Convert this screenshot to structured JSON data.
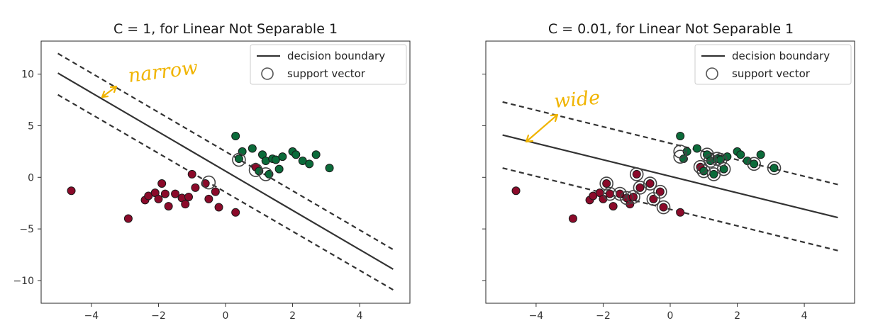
{
  "chart_data": [
    {
      "type": "scatter",
      "title": "C = 1, for Linear Not Separable 1",
      "xlabel": "",
      "ylabel": "",
      "xlim": [
        -5.5,
        5.5
      ],
      "ylim": [
        -12.2,
        13.2
      ],
      "xticks": [
        -4,
        -2,
        0,
        2,
        4
      ],
      "yticks": [
        -10,
        -5,
        0,
        5,
        10
      ],
      "xtick_labels": [
        "−4",
        "−2",
        "0",
        "2",
        "4"
      ],
      "ytick_labels": [
        "−10",
        "−5",
        "0",
        "5",
        "10"
      ],
      "legend": {
        "position": "top-right",
        "entries": [
          "decision boundary",
          "support vector"
        ]
      },
      "annotation": "narrow",
      "lines": [
        {
          "role": "decision-boundary",
          "style": "solid",
          "x": [
            -5,
            5
          ],
          "y": [
            10.1,
            -8.9
          ]
        },
        {
          "role": "margin-upper",
          "style": "dashed",
          "x": [
            -5,
            5
          ],
          "y": [
            12.0,
            -7.0
          ]
        },
        {
          "role": "margin-lower",
          "style": "dashed",
          "x": [
            -5,
            5
          ],
          "y": [
            8.0,
            -10.9
          ]
        }
      ],
      "series": [
        {
          "class": "red",
          "color": "#8b0a2a",
          "points": [
            [
              -4.6,
              -1.3
            ],
            [
              -2.9,
              -4.0
            ],
            [
              -2.4,
              -2.2
            ],
            [
              -2.3,
              -1.8
            ],
            [
              -2.1,
              -1.5
            ],
            [
              -2.0,
              -2.1
            ],
            [
              -1.9,
              -0.6
            ],
            [
              -1.8,
              -1.6
            ],
            [
              -1.7,
              -2.8
            ],
            [
              -1.5,
              -1.6
            ],
            [
              -1.3,
              -2.0
            ],
            [
              -1.2,
              -2.6
            ],
            [
              -1.1,
              -1.9
            ],
            [
              -1.0,
              0.3
            ],
            [
              -0.9,
              -1.0
            ],
            [
              -0.6,
              -0.6
            ],
            [
              -0.5,
              -2.1
            ],
            [
              -0.3,
              -1.4
            ],
            [
              -0.2,
              -2.9
            ],
            [
              0.3,
              -3.4
            ],
            [
              0.9,
              1.0
            ]
          ]
        },
        {
          "class": "green",
          "color": "#0b6b3a",
          "points": [
            [
              0.3,
              4.0
            ],
            [
              0.4,
              1.8
            ],
            [
              0.5,
              2.5
            ],
            [
              0.8,
              2.8
            ],
            [
              1.0,
              0.6
            ],
            [
              1.1,
              2.2
            ],
            [
              1.2,
              1.6
            ],
            [
              1.3,
              0.3
            ],
            [
              1.4,
              1.8
            ],
            [
              1.5,
              1.7
            ],
            [
              1.6,
              0.8
            ],
            [
              1.7,
              2.0
            ],
            [
              2.0,
              2.5
            ],
            [
              2.1,
              2.2
            ],
            [
              2.3,
              1.6
            ],
            [
              2.5,
              1.3
            ],
            [
              2.7,
              2.2
            ],
            [
              3.1,
              0.9
            ]
          ]
        }
      ],
      "support_vectors": [
        [
          -0.5,
          -0.5
        ],
        [
          0.4,
          1.7
        ],
        [
          0.9,
          0.7
        ],
        [
          1.2,
          0.3
        ]
      ]
    },
    {
      "type": "scatter",
      "title": "C = 0.01, for Linear Not Separable 1",
      "xlabel": "",
      "ylabel": "",
      "xlim": [
        -5.5,
        5.5
      ],
      "ylim": [
        -12.2,
        13.2
      ],
      "xticks": [
        -4,
        -2,
        0,
        2,
        4
      ],
      "yticks": [
        -10,
        -5,
        0,
        5,
        10
      ],
      "xtick_labels": [
        "−4",
        "−2",
        "0",
        "2",
        "4"
      ],
      "ytick_labels": [],
      "legend": {
        "position": "top-right",
        "entries": [
          "decision boundary",
          "support vector"
        ]
      },
      "annotation": "wide",
      "lines": [
        {
          "role": "decision-boundary",
          "style": "solid",
          "x": [
            -5,
            5
          ],
          "y": [
            4.1,
            -3.9
          ]
        },
        {
          "role": "margin-upper",
          "style": "dashed",
          "x": [
            -5,
            5
          ],
          "y": [
            7.3,
            -0.7
          ]
        },
        {
          "role": "margin-lower",
          "style": "dashed",
          "x": [
            -5,
            5
          ],
          "y": [
            0.9,
            -7.1
          ]
        }
      ],
      "series": [
        {
          "class": "red",
          "color": "#8b0a2a",
          "points": [
            [
              -4.6,
              -1.3
            ],
            [
              -2.9,
              -4.0
            ],
            [
              -2.4,
              -2.2
            ],
            [
              -2.3,
              -1.8
            ],
            [
              -2.1,
              -1.5
            ],
            [
              -2.0,
              -2.1
            ],
            [
              -1.9,
              -0.6
            ],
            [
              -1.8,
              -1.6
            ],
            [
              -1.7,
              -2.8
            ],
            [
              -1.5,
              -1.6
            ],
            [
              -1.3,
              -2.0
            ],
            [
              -1.2,
              -2.6
            ],
            [
              -1.1,
              -1.9
            ],
            [
              -1.0,
              0.3
            ],
            [
              -0.9,
              -1.0
            ],
            [
              -0.6,
              -0.6
            ],
            [
              -0.5,
              -2.1
            ],
            [
              -0.3,
              -1.4
            ],
            [
              -0.2,
              -2.9
            ],
            [
              0.3,
              -3.4
            ],
            [
              0.9,
              1.0
            ]
          ]
        },
        {
          "class": "green",
          "color": "#0b6b3a",
          "points": [
            [
              0.3,
              4.0
            ],
            [
              0.4,
              1.8
            ],
            [
              0.5,
              2.5
            ],
            [
              0.8,
              2.8
            ],
            [
              1.0,
              0.6
            ],
            [
              1.1,
              2.2
            ],
            [
              1.2,
              1.6
            ],
            [
              1.3,
              0.3
            ],
            [
              1.4,
              1.8
            ],
            [
              1.5,
              1.7
            ],
            [
              1.6,
              0.8
            ],
            [
              1.7,
              2.0
            ],
            [
              2.0,
              2.5
            ],
            [
              2.1,
              2.2
            ],
            [
              2.3,
              1.6
            ],
            [
              2.5,
              1.3
            ],
            [
              2.7,
              2.2
            ],
            [
              3.1,
              0.9
            ]
          ]
        }
      ],
      "support_vectors": [
        [
          -1.9,
          -0.6
        ],
        [
          -1.8,
          -1.6
        ],
        [
          -1.5,
          -1.6
        ],
        [
          -1.3,
          -2.0
        ],
        [
          -1.1,
          -1.9
        ],
        [
          -1.0,
          0.3
        ],
        [
          -0.9,
          -1.0
        ],
        [
          -0.6,
          -0.6
        ],
        [
          -0.5,
          -2.1
        ],
        [
          -0.3,
          -1.4
        ],
        [
          -0.2,
          -2.9
        ],
        [
          0.3,
          2.0
        ],
        [
          0.3,
          2.5
        ],
        [
          0.9,
          1.0
        ],
        [
          1.0,
          0.6
        ],
        [
          1.1,
          2.2
        ],
        [
          1.2,
          1.6
        ],
        [
          1.3,
          0.3
        ],
        [
          1.4,
          1.8
        ],
        [
          1.5,
          1.7
        ],
        [
          1.6,
          0.8
        ],
        [
          2.5,
          1.3
        ],
        [
          3.1,
          0.9
        ]
      ]
    }
  ],
  "colors": {
    "red_class": "#8b0a2a",
    "green_class": "#0b6b3a",
    "boundary": "#333333",
    "annotation": "#f0b400"
  }
}
